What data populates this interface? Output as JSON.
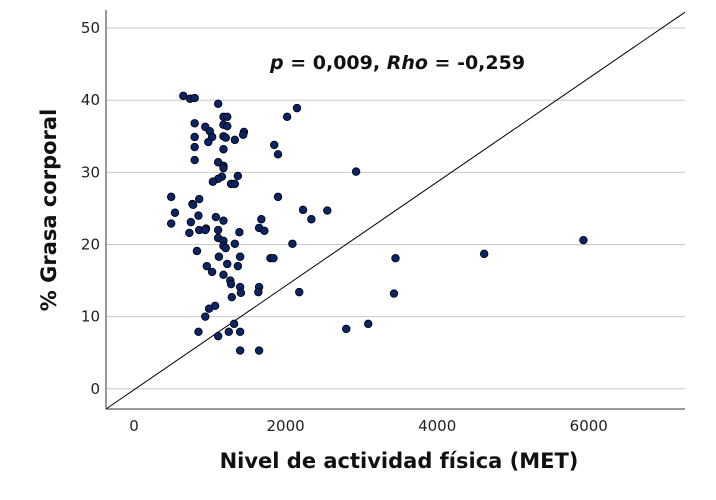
{
  "chart_data": {
    "type": "scatter",
    "title": "",
    "xlabel": "Nivel de actividad física (MET)",
    "ylabel": "% Grasa corporal",
    "xlim": [
      -370,
      7270
    ],
    "ylim": [
      -2.8,
      52.5
    ],
    "xticks": [
      0,
      2000,
      4000,
      6000
    ],
    "yticks": [
      0,
      10,
      20,
      30,
      40,
      50
    ],
    "grid": "horizontal",
    "marker_color": "#0b2466",
    "annotation": {
      "p_label": "p",
      "p_text": " = 0,009, ",
      "rho_label": "Rho",
      "rho_text": " = -0,259"
    },
    "reference_line": {
      "x": [
        -370,
        7270
      ],
      "y": [
        -2.8,
        52.2
      ]
    },
    "points": [
      [
        650,
        40.6
      ],
      [
        740,
        40.2
      ],
      [
        800,
        40.3
      ],
      [
        1110,
        39.5
      ],
      [
        2150,
        38.9
      ],
      [
        2020,
        37.7
      ],
      [
        1180,
        37.7
      ],
      [
        1230,
        37.7
      ],
      [
        800,
        36.8
      ],
      [
        1180,
        36.6
      ],
      [
        1230,
        36.4
      ],
      [
        940,
        36.3
      ],
      [
        1000,
        35.7
      ],
      [
        800,
        34.9
      ],
      [
        1030,
        34.9
      ],
      [
        1180,
        35.0
      ],
      [
        1210,
        34.8
      ],
      [
        1330,
        34.5
      ],
      [
        1450,
        35.6
      ],
      [
        1440,
        35.2
      ],
      [
        980,
        34.2
      ],
      [
        1850,
        33.8
      ],
      [
        1900,
        32.5
      ],
      [
        800,
        33.5
      ],
      [
        1180,
        33.2
      ],
      [
        800,
        31.7
      ],
      [
        1110,
        31.4
      ],
      [
        1180,
        30.9
      ],
      [
        1180,
        30.6
      ],
      [
        1370,
        29.5
      ],
      [
        1160,
        29.4
      ],
      [
        1110,
        29.1
      ],
      [
        1040,
        28.7
      ],
      [
        1280,
        28.4
      ],
      [
        1330,
        28.4
      ],
      [
        2930,
        30.1
      ],
      [
        490,
        26.6
      ],
      [
        1900,
        26.6
      ],
      [
        860,
        26.3
      ],
      [
        770,
        25.6
      ],
      [
        780,
        25.5
      ],
      [
        540,
        24.4
      ],
      [
        850,
        24.0
      ],
      [
        2230,
        24.8
      ],
      [
        2340,
        23.5
      ],
      [
        2550,
        24.7
      ],
      [
        1080,
        23.8
      ],
      [
        1180,
        23.3
      ],
      [
        1680,
        23.5
      ],
      [
        750,
        23.1
      ],
      [
        490,
        22.9
      ],
      [
        860,
        22.0
      ],
      [
        950,
        22.2
      ],
      [
        940,
        22.0
      ],
      [
        1110,
        22.0
      ],
      [
        730,
        21.6
      ],
      [
        1390,
        21.7
      ],
      [
        1650,
        22.3
      ],
      [
        1720,
        21.9
      ],
      [
        1110,
        20.9
      ],
      [
        1180,
        20.5
      ],
      [
        1330,
        20.1
      ],
      [
        1180,
        19.8
      ],
      [
        1210,
        19.5
      ],
      [
        2090,
        20.1
      ],
      [
        830,
        19.1
      ],
      [
        1120,
        18.3
      ],
      [
        1230,
        17.3
      ],
      [
        1400,
        18.3
      ],
      [
        1370,
        17.0
      ],
      [
        1800,
        18.1
      ],
      [
        1840,
        18.1
      ],
      [
        960,
        17.0
      ],
      [
        1030,
        16.2
      ],
      [
        1180,
        15.8
      ],
      [
        1270,
        15.0
      ],
      [
        1280,
        14.5
      ],
      [
        1400,
        14.1
      ],
      [
        1410,
        13.3
      ],
      [
        1650,
        14.1
      ],
      [
        1640,
        13.4
      ],
      [
        1290,
        12.7
      ],
      [
        2180,
        13.4
      ],
      [
        1070,
        11.5
      ],
      [
        990,
        11.1
      ],
      [
        940,
        10.0
      ],
      [
        1320,
        9.0
      ],
      [
        850,
        7.9
      ],
      [
        1110,
        7.3
      ],
      [
        1250,
        7.9
      ],
      [
        1400,
        7.9
      ],
      [
        1400,
        5.3
      ],
      [
        1650,
        5.3
      ],
      [
        3450,
        18.1
      ],
      [
        3430,
        13.2
      ],
      [
        2800,
        8.3
      ],
      [
        3090,
        9.0
      ],
      [
        4620,
        18.7
      ],
      [
        5930,
        20.6
      ]
    ]
  }
}
